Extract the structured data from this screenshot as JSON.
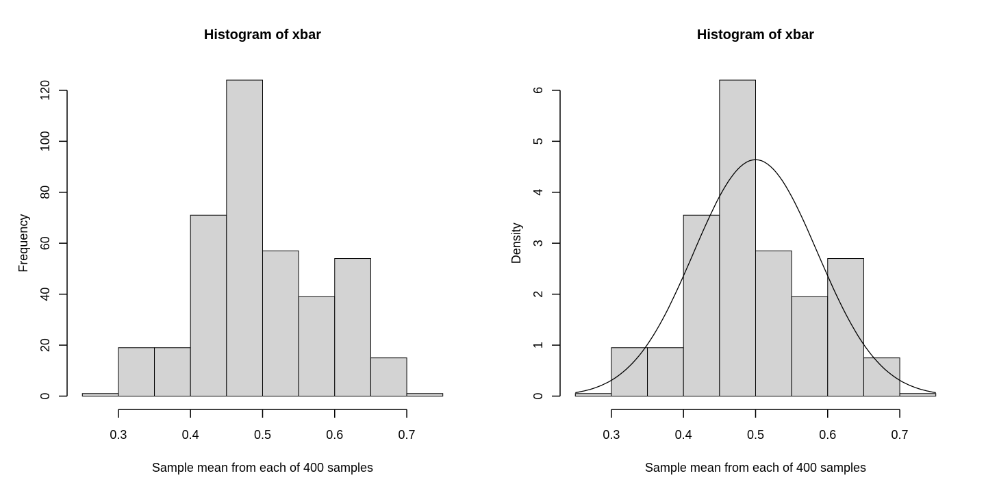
{
  "page": {
    "background": "#ffffff",
    "foreground": "#000000"
  },
  "chart_data": [
    {
      "name": "frequency-histogram",
      "type": "bar",
      "title": "Histogram of xbar",
      "xlabel": "Sample mean from each of 400 samples",
      "ylabel": "Frequency",
      "bin_start": 0.25,
      "bin_width": 0.05,
      "bin_edges": [
        0.25,
        0.3,
        0.35,
        0.4,
        0.45,
        0.5,
        0.55,
        0.6,
        0.65,
        0.7,
        0.75
      ],
      "values": [
        1,
        19,
        19,
        71,
        124,
        57,
        39,
        54,
        15,
        1
      ],
      "x_ticks": [
        0.3,
        0.4,
        0.5,
        0.6,
        0.7
      ],
      "x_tick_labels": [
        "0.3",
        "0.4",
        "0.5",
        "0.6",
        "0.7"
      ],
      "y_ticks": [
        0,
        20,
        40,
        60,
        80,
        100,
        120
      ],
      "y_tick_labels": [
        "0",
        "20",
        "40",
        "60",
        "80",
        "100",
        "120"
      ],
      "xlim": [
        0.25,
        0.75
      ],
      "ylim": [
        0,
        124
      ],
      "grid": "off",
      "legend": "none",
      "bar_fill": "#d3d3d3",
      "bar_stroke": "#000000"
    },
    {
      "name": "density-histogram",
      "type": "bar",
      "title": "Histogram of xbar",
      "xlabel": "Sample mean from each of 400 samples",
      "ylabel": "Density",
      "bin_start": 0.25,
      "bin_width": 0.05,
      "bin_edges": [
        0.25,
        0.3,
        0.35,
        0.4,
        0.45,
        0.5,
        0.55,
        0.6,
        0.65,
        0.7,
        0.75
      ],
      "values": [
        0.05,
        0.95,
        0.95,
        3.55,
        6.2,
        2.85,
        1.95,
        2.7,
        0.75,
        0.05
      ],
      "x_ticks": [
        0.3,
        0.4,
        0.5,
        0.6,
        0.7
      ],
      "x_tick_labels": [
        "0.3",
        "0.4",
        "0.5",
        "0.6",
        "0.7"
      ],
      "y_ticks": [
        0,
        1,
        2,
        3,
        4,
        5,
        6
      ],
      "y_tick_labels": [
        "0",
        "1",
        "2",
        "3",
        "4",
        "5",
        "6"
      ],
      "xlim": [
        0.25,
        0.75
      ],
      "ylim": [
        0,
        6.2
      ],
      "grid": "off",
      "legend": "none",
      "bar_fill": "#d3d3d3",
      "bar_stroke": "#000000",
      "curve": {
        "type": "normal-density",
        "mean": 0.5,
        "sd": 0.086,
        "peak": 4.64,
        "from": 0.25,
        "to": 0.75,
        "color": "#000000"
      }
    }
  ]
}
